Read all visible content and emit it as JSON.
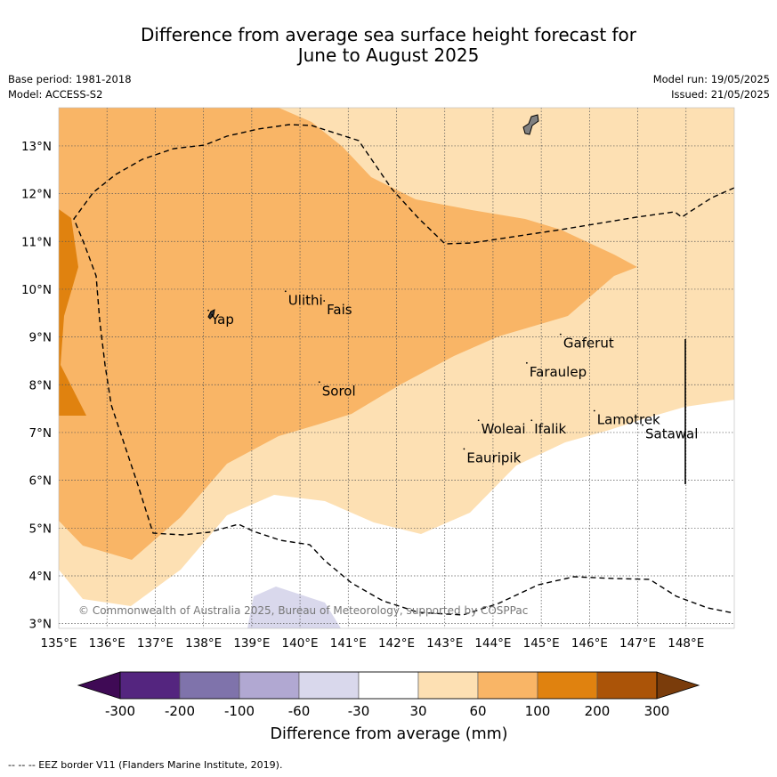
{
  "title_line1": "Difference from average sea surface height forecast for",
  "title_line2": "June to August 2025",
  "meta": {
    "base_period": "Base period: 1981-2018",
    "model": "Model: ACCESS-S2",
    "model_run": "Model run: 19/05/2025",
    "issued": "Issued: 21/05/2025"
  },
  "map": {
    "lon_labels": [
      "135°E",
      "136°E",
      "137°E",
      "138°E",
      "139°E",
      "140°E",
      "141°E",
      "142°E",
      "143°E",
      "144°E",
      "145°E",
      "146°E",
      "147°E",
      "148°E"
    ],
    "lat_labels": [
      "3°N",
      "4°N",
      "5°N",
      "6°N",
      "7°N",
      "8°N",
      "9°N",
      "10°N",
      "11°N",
      "12°N",
      "13°N"
    ],
    "lon_range": [
      135,
      149
    ],
    "lat_range": [
      2.9,
      13.8
    ],
    "places": [
      {
        "name": "Yap",
        "lon": 138.1,
        "lat": 9.5
      },
      {
        "name": "Ulithi",
        "lon": 139.7,
        "lat": 9.9
      },
      {
        "name": "Fais",
        "lon": 140.5,
        "lat": 9.7
      },
      {
        "name": "Gaferut",
        "lon": 145.4,
        "lat": 9.0
      },
      {
        "name": "Faraulep",
        "lon": 144.7,
        "lat": 8.4
      },
      {
        "name": "Sorol",
        "lon": 140.4,
        "lat": 8.0
      },
      {
        "name": "Lamotrek",
        "lon": 146.1,
        "lat": 7.4
      },
      {
        "name": "Woleai",
        "lon": 143.7,
        "lat": 7.2
      },
      {
        "name": "Ifalik",
        "lon": 144.8,
        "lat": 7.2
      },
      {
        "name": "Satawal",
        "lon": 147.1,
        "lat": 7.1
      },
      {
        "name": "Eauripik",
        "lon": 143.4,
        "lat": 6.6
      }
    ],
    "copyright": "© Commonwealth of Australia 2025, Bureau of Meteorology, supported by COSPPac"
  },
  "legend": {
    "title": "Difference from average (mm)",
    "tick_labels": [
      "-300",
      "-200",
      "-100",
      "-60",
      "-30",
      "30",
      "60",
      "100",
      "200",
      "300"
    ],
    "colors": [
      "#3f0a55",
      "#54257f",
      "#7f73ab",
      "#b1a8d2",
      "#d9d8ec",
      "#ffffff",
      "#fde0b3",
      "#f9b566",
      "#e0820f",
      "#ab5408",
      "#7a3c0b"
    ]
  },
  "footer": "--  --  -- EEZ border V11 (Flanders Marine Institute, 2019)."
}
